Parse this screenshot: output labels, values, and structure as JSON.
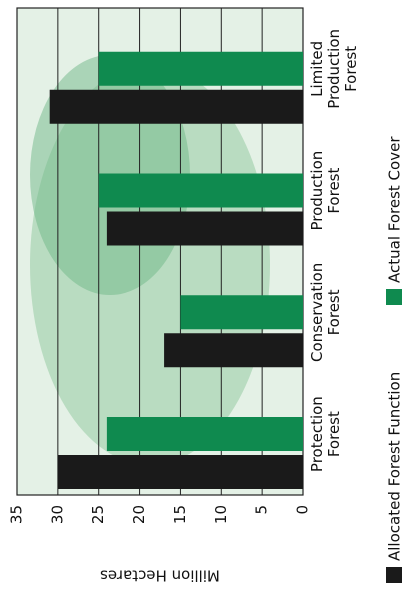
{
  "chart_data": {
    "type": "bar",
    "y_label": "Million Hectares",
    "categories": [
      "Protection Forest",
      "Conservation Forest",
      "Production Forest",
      "Limited Production Forest"
    ],
    "series": [
      {
        "name": "Allocated Forest Function",
        "color": "#1a1a1a",
        "values": [
          30,
          17,
          24,
          31
        ]
      },
      {
        "name": "Actual Forest Cover",
        "color": "#0f8a4f",
        "values": [
          24,
          15,
          25,
          25
        ]
      }
    ],
    "ylim": [
      0,
      35
    ],
    "yticks": [
      0,
      5,
      10,
      15,
      20,
      25,
      30,
      35
    ],
    "grid": true
  }
}
